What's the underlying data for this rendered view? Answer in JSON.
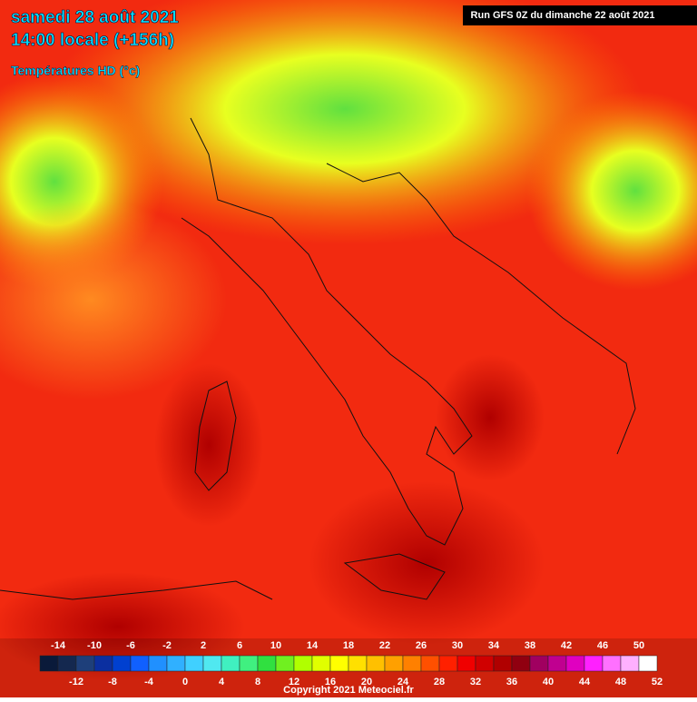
{
  "header": {
    "date": "samedi 28 août 2021",
    "time": "14:00 locale (+156h)",
    "field": "Températures HD (°c)",
    "run": "Run GFS 0Z du dimanche 22 août 2021"
  },
  "scale": {
    "range": [
      -16,
      52
    ],
    "top_labels": [
      -14,
      -10,
      -6,
      -2,
      2,
      6,
      10,
      14,
      18,
      22,
      26,
      30,
      34,
      38,
      42,
      46,
      50
    ],
    "bottom_labels": [
      -12,
      -8,
      -4,
      0,
      4,
      8,
      12,
      16,
      20,
      24,
      28,
      32,
      36,
      40,
      44,
      48,
      52
    ],
    "colors": [
      "#0a1a3a",
      "#14284f",
      "#1e3f7a",
      "#0b2fa0",
      "#0040d0",
      "#1060ff",
      "#2090ff",
      "#30b0ff",
      "#40d0ff",
      "#50e8f0",
      "#40f0c0",
      "#40f080",
      "#30e040",
      "#70f020",
      "#b0ff00",
      "#e0ff00",
      "#ffff00",
      "#ffe000",
      "#ffc000",
      "#ffa000",
      "#ff8000",
      "#ff5000",
      "#ff2000",
      "#f00000",
      "#d00000",
      "#b00000",
      "#900010",
      "#a00060",
      "#c00090",
      "#e000c0",
      "#ff20ff",
      "#ff70ff",
      "#ffb0ff",
      "#ffffff"
    ]
  },
  "footer": {
    "copyright": "Copyright 2021 Meteociel.fr"
  }
}
